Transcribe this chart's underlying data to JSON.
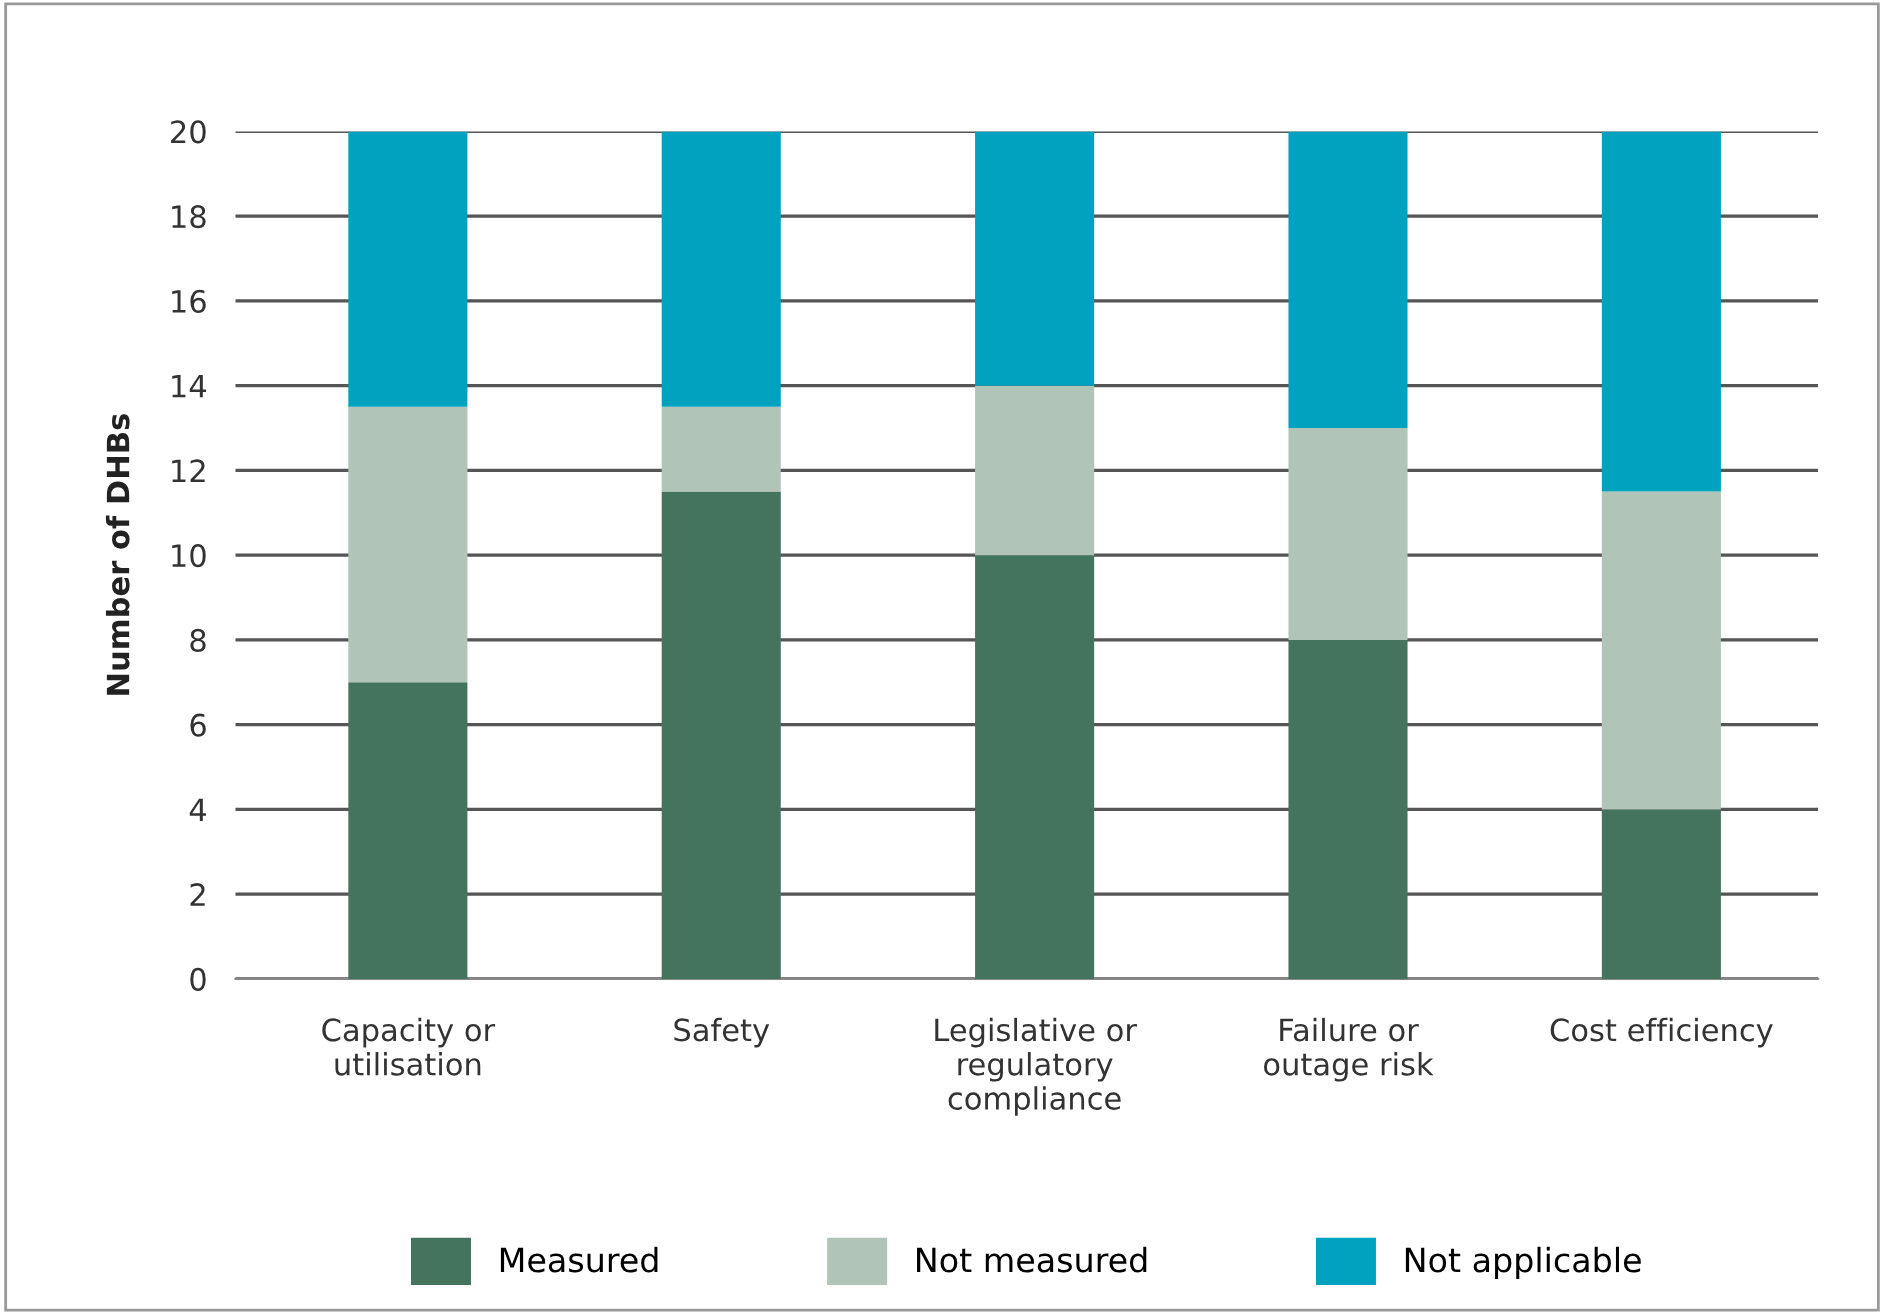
{
  "chart_data": {
    "type": "bar",
    "stacked": true,
    "ylabel": "Number of DHBs",
    "categories": [
      "Capacity or\nutilisation",
      "Safety",
      "Legislative or\nregulatory\ncompliance",
      "Failure or\noutage risk",
      "Cost efficiency"
    ],
    "series": [
      {
        "name": "Measured",
        "color": "#45745e",
        "values": [
          7,
          11.5,
          10,
          8,
          4
        ]
      },
      {
        "name": "Not measured",
        "color": "#b1c4b8",
        "values": [
          6.5,
          2,
          4,
          5,
          7.5
        ]
      },
      {
        "name": "Not applicable",
        "color": "#00a2bf",
        "values": [
          6.5,
          6.5,
          6,
          7,
          8.5
        ]
      }
    ],
    "ylim": [
      0,
      20
    ],
    "yticks": [
      0,
      2,
      4,
      6,
      8,
      10,
      12,
      14,
      16,
      18,
      20
    ],
    "grid": "y",
    "legend": "bottom"
  }
}
